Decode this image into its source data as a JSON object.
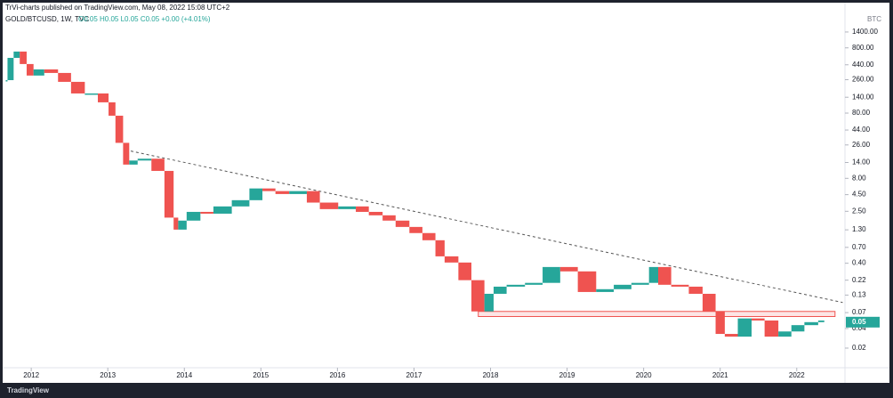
{
  "header": {
    "published": "TrVi-charts published on TradingView.com, May 08, 2022 15:08 UTC+2",
    "symbol": "GOLD/BTCUSD, 1W, TVC",
    "ohlc": "O0.05 H0.05 L0.05 C0.05 +0.00 (+4.01%)"
  },
  "chart_data": {
    "type": "candlestick",
    "y_unit": "BTC",
    "log_scale": true,
    "up_color": "#26a69a",
    "down_color": "#ef5350",
    "x": [
      2011.69,
      2011.77,
      2011.85,
      2011.94,
      2012.03,
      2012.17,
      2012.35,
      2012.52,
      2012.7,
      2012.87,
      2013.01,
      2013.1,
      2013.2,
      2013.28,
      2013.39,
      2013.57,
      2013.74,
      2013.86,
      2013.92,
      2014.03,
      2014.21,
      2014.38,
      2014.62,
      2014.85,
      2015.02,
      2015.19,
      2015.37,
      2015.6,
      2015.77,
      2016.01,
      2016.24,
      2016.41,
      2016.59,
      2016.76,
      2016.94,
      2017.11,
      2017.28,
      2017.4,
      2017.58,
      2017.75,
      2017.92,
      2018.04,
      2018.21,
      2018.45,
      2018.68,
      2018.91,
      2019.14,
      2019.38,
      2019.61,
      2019.84,
      2020.07,
      2020.19,
      2020.36,
      2020.59,
      2020.77,
      2020.94,
      2021.06,
      2021.23,
      2021.41,
      2021.58,
      2021.76,
      2021.93,
      2022.1,
      2022.28,
      2022.36
    ],
    "values": [
      256,
      562,
      702,
      452,
      301,
      374,
      330,
      241,
      160,
      160,
      117,
      73,
      28,
      13,
      15,
      16,
      10.4,
      2.0,
      1.31,
      1.8,
      2.45,
      2.3,
      2.97,
      3.7,
      5.6,
      5.1,
      4.6,
      5.1,
      3.4,
      2.7,
      2.97,
      2.45,
      2.17,
      1.8,
      1.44,
      1.16,
      0.9,
      0.51,
      0.41,
      0.22,
      0.073,
      0.136,
      0.175,
      0.187,
      0.2,
      0.35,
      0.3,
      0.145,
      0.16,
      0.187,
      0.2,
      0.35,
      0.187,
      0.175,
      0.136,
      0.073,
      0.033,
      0.03,
      0.057,
      0.053,
      0.03,
      0.036,
      0.045,
      0.05,
      0.053
    ],
    "trendline": {
      "x": [
        2013.3,
        2022.6
      ],
      "values": [
        21,
        0.1
      ]
    },
    "support_zone": {
      "x": [
        2017.84,
        2022.5
      ],
      "range": [
        0.061,
        0.073
      ]
    },
    "last_price": 0.05,
    "xlim": [
      2011.65,
      2022.63
    ],
    "xticks": [
      2012,
      2013,
      2014,
      2015,
      2016,
      2017,
      2018,
      2019,
      2020,
      2021,
      2022
    ],
    "ylim": [
      0.011,
      2970
    ],
    "yticks": [
      {
        "value": 1400,
        "label": "1400.00"
      },
      {
        "value": 800,
        "label": "800.00"
      },
      {
        "value": 440,
        "label": "440.00"
      },
      {
        "value": 260,
        "label": "260.00"
      },
      {
        "value": 140,
        "label": "140.00"
      },
      {
        "value": 80,
        "label": "80.00"
      },
      {
        "value": 44,
        "label": "44.00"
      },
      {
        "value": 26,
        "label": "26.00"
      },
      {
        "value": 14,
        "label": "14.00"
      },
      {
        "value": 8,
        "label": "8.00"
      },
      {
        "value": 4.5,
        "label": "4.50"
      },
      {
        "value": 2.5,
        "label": "2.50"
      },
      {
        "value": 1.3,
        "label": "1.30"
      },
      {
        "value": 0.7,
        "label": "0.70"
      },
      {
        "value": 0.4,
        "label": "0.40"
      },
      {
        "value": 0.22,
        "label": "0.22"
      },
      {
        "value": 0.13,
        "label": "0.13"
      },
      0.07,
      0.04,
      0.02
    ]
  },
  "footer": {
    "brand": "TradingView"
  }
}
